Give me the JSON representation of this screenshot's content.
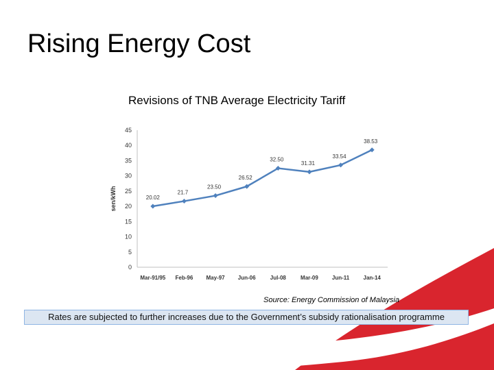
{
  "slide": {
    "title": "Rising Energy Cost",
    "source": "Source: Energy Commission of Malaysia",
    "footer_note": "Rates are subjected to further increases due to the Government’s subsidy rationalisation programme"
  },
  "colors": {
    "line": "#4f81bd",
    "accent_red": "#d9252e"
  },
  "chart_data": {
    "type": "line",
    "title": "Revisions of TNB Average Electricity Tariff",
    "xlabel": "",
    "ylabel": "sen/kWh",
    "categories": [
      "Mar-91/95",
      "Feb-96",
      "May-97",
      "Jun-06",
      "Jul-08",
      "Mar-09",
      "Jun-11",
      "Jan-14"
    ],
    "values": [
      20.02,
      21.7,
      23.5,
      26.52,
      32.5,
      31.31,
      33.54,
      38.53
    ],
    "data_labels": [
      "20.02",
      "21.7",
      "23.50",
      "26.52",
      "32.50",
      "31.31",
      "33.54",
      "38.53"
    ],
    "yticks": [
      0,
      5,
      10,
      15,
      20,
      25,
      30,
      35,
      40,
      45
    ],
    "ylim": [
      0,
      45
    ],
    "grid": false,
    "legend": "none"
  }
}
